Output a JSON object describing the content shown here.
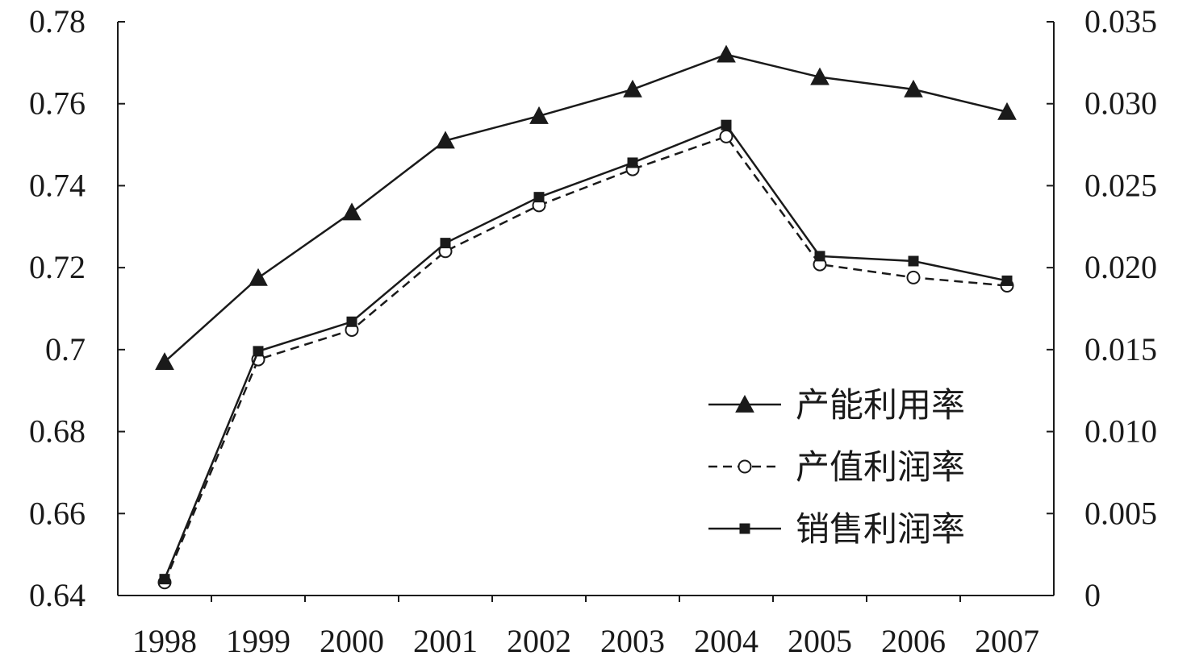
{
  "chart_data": {
    "type": "line",
    "categories": [
      "1998",
      "1999",
      "2000",
      "2001",
      "2002",
      "2003",
      "2004",
      "2005",
      "2006",
      "2007"
    ],
    "y_left": {
      "range": [
        0.64,
        0.78
      ],
      "ticks": [
        "0.64",
        "0.66",
        "0.68",
        "0.7",
        "0.72",
        "0.74",
        "0.76",
        "0.78"
      ]
    },
    "y_right": {
      "range": [
        0,
        0.035
      ],
      "ticks": [
        "0",
        "0.005",
        "0.010",
        "0.015",
        "0.020",
        "0.025",
        "0.030",
        "0.035"
      ]
    },
    "series": [
      {
        "name": "产能利用率",
        "axis": "left",
        "marker": "triangle",
        "line": "solid",
        "values": [
          0.697,
          0.7175,
          0.7335,
          0.751,
          0.757,
          0.7635,
          0.772,
          0.7665,
          0.7635,
          0.758
        ]
      },
      {
        "name": "产值利润率",
        "axis": "right",
        "marker": "circle-open",
        "line": "dashed",
        "values": [
          0.0008,
          0.0144,
          0.0162,
          0.021,
          0.0238,
          0.026,
          0.028,
          0.0202,
          0.0194,
          0.0189
        ]
      },
      {
        "name": "销售利润率",
        "axis": "right",
        "marker": "square",
        "line": "solid",
        "values": [
          0.001,
          0.0149,
          0.0167,
          0.0215,
          0.0243,
          0.0264,
          0.0287,
          0.0207,
          0.0204,
          0.0192
        ]
      }
    ],
    "legend_position": "bottom-right",
    "grid": false,
    "colors": {
      "line": "#1a1a1a"
    }
  }
}
